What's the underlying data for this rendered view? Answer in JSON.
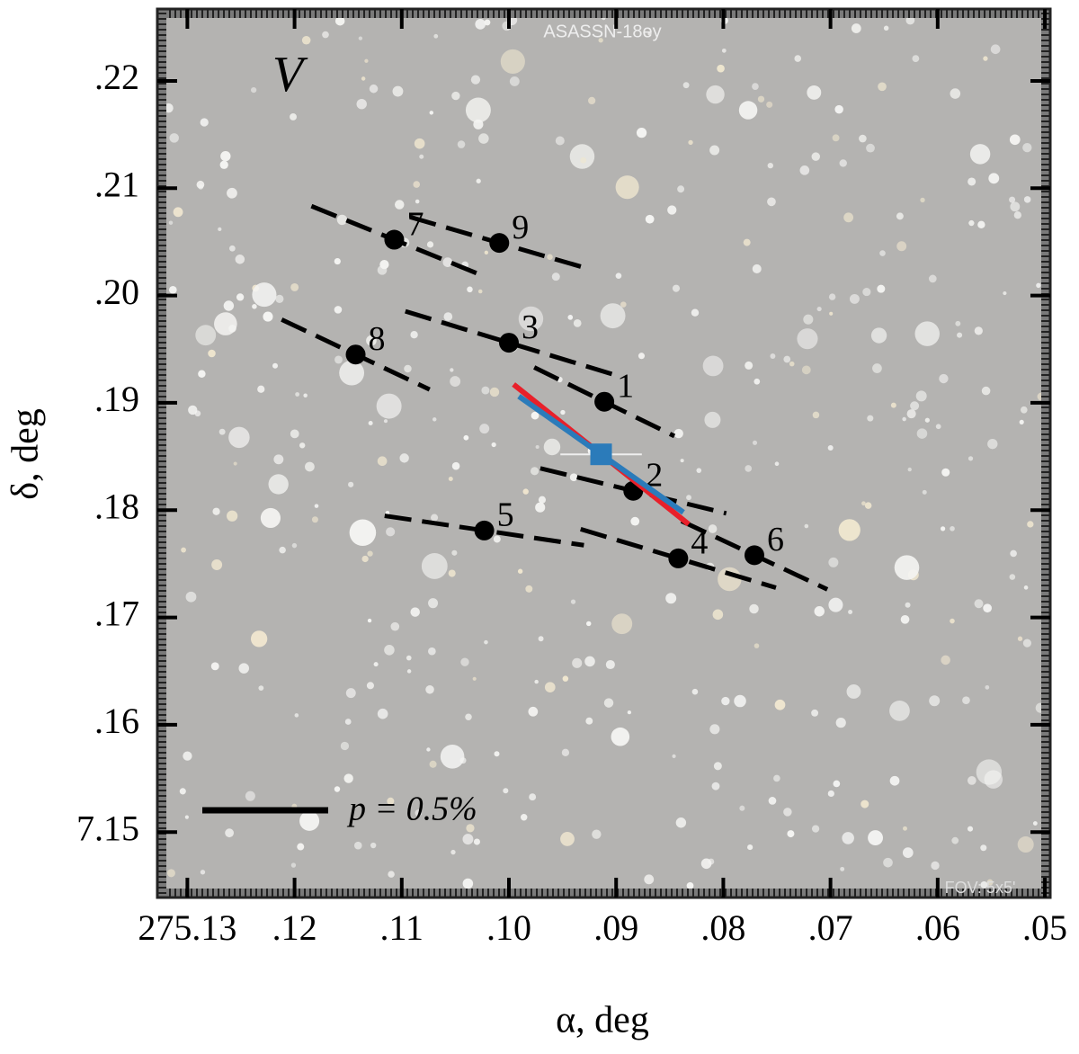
{
  "chart_data": {
    "type": "polarization-map",
    "annotation": "V",
    "image_title": "ASASSN-18ey",
    "image_note": "FOV: 5x5'",
    "xlabel": "α, deg",
    "ylabel": "δ, deg",
    "xlim": [
      275.1328,
      275.0495
    ],
    "ylim": [
      7.1439,
      7.2267
    ],
    "xticks": [
      275.13,
      {
        "value": 275.12,
        "label": ".12"
      },
      {
        "value": 275.11,
        "label": ".11"
      },
      {
        "value": 275.1,
        "label": ".10"
      },
      {
        "value": 275.09,
        "label": ".09"
      },
      {
        "value": 275.08,
        "label": ".08"
      },
      {
        "value": 275.07,
        "label": ".07"
      },
      {
        "value": 275.06,
        "label": ".06"
      },
      {
        "value": 275.05,
        "label": ".05"
      }
    ],
    "yticks": [
      7.15,
      {
        "value": 7.16,
        "label": ".16"
      },
      {
        "value": 7.17,
        "label": ".17"
      },
      {
        "value": 7.18,
        "label": ".18"
      },
      {
        "value": 7.19,
        "label": ".19"
      },
      {
        "value": 7.2,
        "label": ".20"
      },
      {
        "value": 7.21,
        "label": ".21"
      },
      {
        "value": 7.22,
        "label": ".22"
      }
    ],
    "stars": {
      "color": "#000000",
      "labels": [
        "1",
        "2",
        "3",
        "4",
        "5",
        "6",
        "7",
        "8",
        "9"
      ],
      "x": [
        275.0911,
        275.0884,
        275.1,
        275.0842,
        275.1023,
        275.0771,
        275.1107,
        275.1143,
        275.1009
      ],
      "y": [
        7.1901,
        7.1818,
        7.1956,
        7.1755,
        7.1781,
        7.1758,
        7.2052,
        7.1945,
        7.2049
      ],
      "p": [
        0.62,
        0.76,
        0.86,
        0.81,
        0.8,
        0.64,
        0.71,
        0.65,
        0.74
      ],
      "angle": [
        63.9,
        76.4,
        73.1,
        73.3,
        81.6,
        64.9,
        67.9,
        64.7,
        73.8
      ]
    },
    "target": {
      "color": "#2b7bba",
      "x": 275.0914,
      "y": 7.1852,
      "xerr": 0.0038,
      "vectors": [
        {
          "color": "#e8202a",
          "p": 0.89,
          "angle": 51.4
        },
        {
          "color": "#2b7bba",
          "p": 0.8,
          "angle": 54.8
        }
      ]
    },
    "legend": {
      "label": "p = 0.5%",
      "p": 0.5
    }
  }
}
